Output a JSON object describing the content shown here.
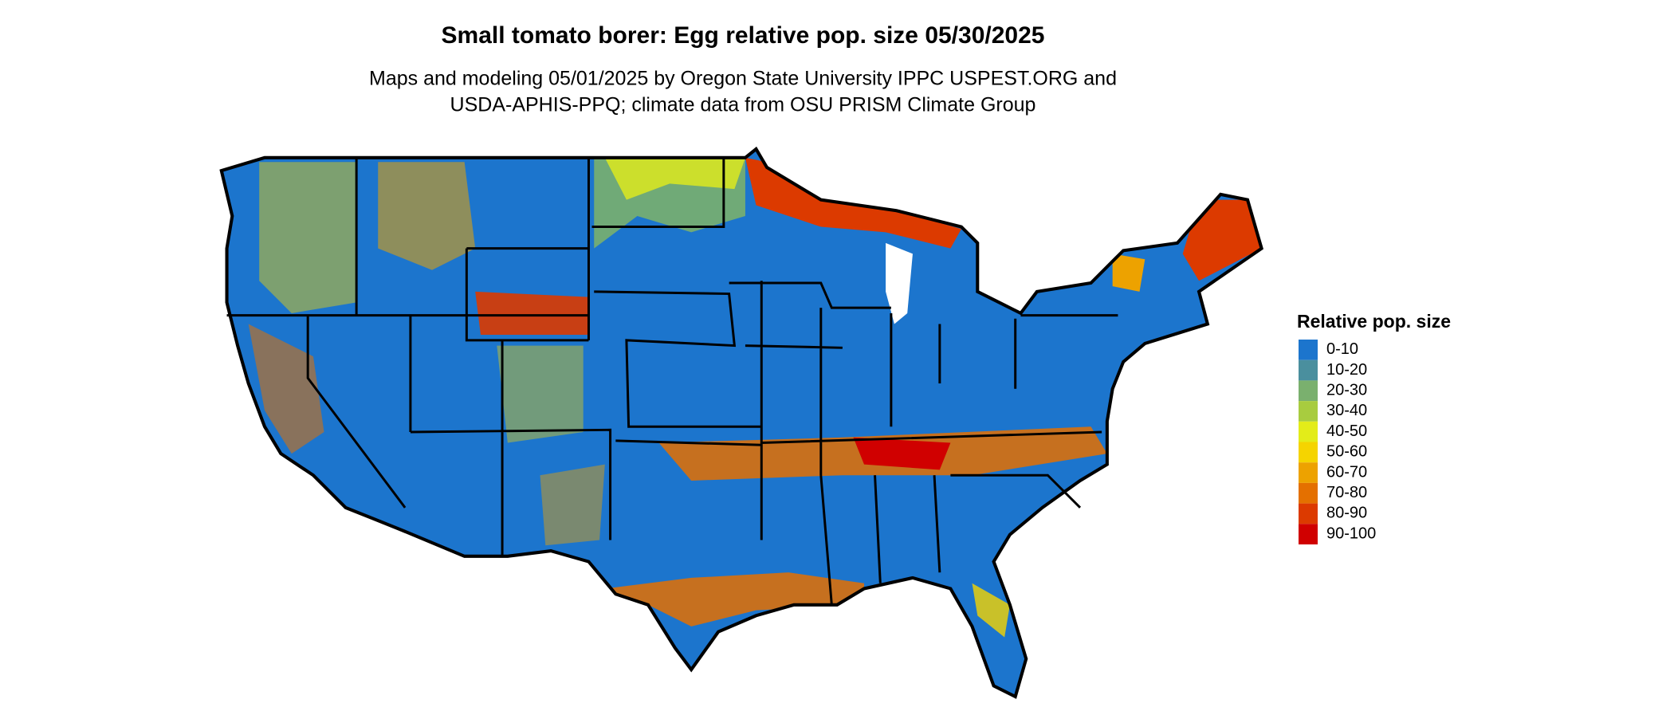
{
  "title": "Small tomato borer: Egg relative pop. size 05/30/2025",
  "subtitle_lines": [
    "Maps and modeling 05/01/2025 by Oregon State University IPPC USPEST.ORG and",
    "USDA-APHIS-PPQ; climate data from OSU PRISM Climate Group"
  ],
  "legend": {
    "title": "Relative pop. size",
    "items": [
      {
        "label": "0-10",
        "color": "#1c75cd"
      },
      {
        "label": "10-20",
        "color": "#4a8f9e"
      },
      {
        "label": "20-30",
        "color": "#7ab06e"
      },
      {
        "label": "30-40",
        "color": "#a8cc3f"
      },
      {
        "label": "40-50",
        "color": "#e3ec19"
      },
      {
        "label": "50-60",
        "color": "#f5d400"
      },
      {
        "label": "60-70",
        "color": "#eda200"
      },
      {
        "label": "70-80",
        "color": "#e47000"
      },
      {
        "label": "80-90",
        "color": "#dc3a00"
      },
      {
        "label": "90-100",
        "color": "#d00000"
      }
    ]
  }
}
